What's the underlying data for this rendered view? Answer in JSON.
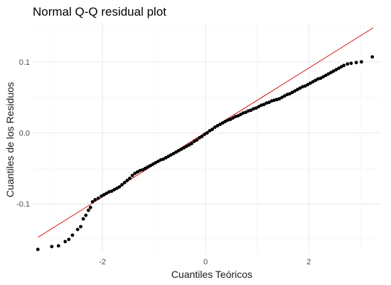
{
  "chart_data": {
    "type": "scatter",
    "title": "Normal Q-Q residual plot",
    "xlabel": "Cuantiles Teóricos",
    "ylabel": "Cuantiles de los Residuos",
    "xlim": [
      -3.35,
      3.4
    ],
    "ylim": [
      -0.17,
      0.155
    ],
    "x_ticks": [
      -2,
      0,
      2
    ],
    "x_tick_labels": [
      "-2",
      "0",
      "2"
    ],
    "y_ticks": [
      -0.1,
      0.0,
      0.1
    ],
    "y_tick_labels": [
      "-0.1",
      "0.0",
      "0.1"
    ],
    "grid": true,
    "reference_line": {
      "color": "#cc0000",
      "from": [
        -3.25,
        -0.147
      ],
      "to": [
        3.25,
        0.148
      ]
    },
    "point_color": "#000000",
    "points": [
      [
        -3.25,
        -0.164
      ],
      [
        -2.98,
        -0.16
      ],
      [
        -2.85,
        -0.159
      ],
      [
        -2.72,
        -0.153
      ],
      [
        -2.65,
        -0.15
      ],
      [
        -2.58,
        -0.144
      ],
      [
        -2.48,
        -0.136
      ],
      [
        -2.42,
        -0.132
      ],
      [
        -2.37,
        -0.121
      ],
      [
        -2.32,
        -0.116
      ],
      [
        -2.27,
        -0.109
      ],
      [
        -2.23,
        -0.105
      ],
      [
        -2.19,
        -0.097
      ],
      [
        -2.14,
        -0.094
      ],
      [
        -2.08,
        -0.092
      ],
      [
        -2.02,
        -0.089
      ],
      [
        -1.97,
        -0.087
      ],
      [
        -1.92,
        -0.085
      ],
      [
        -1.87,
        -0.083
      ],
      [
        -1.82,
        -0.082
      ],
      [
        -1.77,
        -0.08
      ],
      [
        -1.72,
        -0.078
      ],
      [
        -1.67,
        -0.076
      ],
      [
        -1.62,
        -0.073
      ],
      [
        -1.57,
        -0.07
      ],
      [
        -1.52,
        -0.067
      ],
      [
        -1.47,
        -0.064
      ],
      [
        -1.42,
        -0.06
      ],
      [
        -1.37,
        -0.057
      ],
      [
        -1.32,
        -0.055
      ],
      [
        -1.27,
        -0.053
      ],
      [
        -1.22,
        -0.052
      ],
      [
        -1.17,
        -0.05
      ],
      [
        -1.12,
        -0.048
      ],
      [
        -1.07,
        -0.046
      ],
      [
        -1.02,
        -0.044
      ],
      [
        -0.97,
        -0.042
      ],
      [
        -0.92,
        -0.04
      ],
      [
        -0.87,
        -0.038
      ],
      [
        -0.82,
        -0.037
      ],
      [
        -0.77,
        -0.035
      ],
      [
        -0.72,
        -0.033
      ],
      [
        -0.67,
        -0.031
      ],
      [
        -0.62,
        -0.029
      ],
      [
        -0.57,
        -0.027
      ],
      [
        -0.52,
        -0.025
      ],
      [
        -0.47,
        -0.023
      ],
      [
        -0.42,
        -0.021
      ],
      [
        -0.37,
        -0.019
      ],
      [
        -0.32,
        -0.017
      ],
      [
        -0.27,
        -0.015
      ],
      [
        -0.22,
        -0.012
      ],
      [
        -0.17,
        -0.01
      ],
      [
        -0.12,
        -0.007
      ],
      [
        -0.07,
        -0.005
      ],
      [
        -0.02,
        -0.002
      ],
      [
        0.03,
        0.0
      ],
      [
        0.08,
        0.003
      ],
      [
        0.13,
        0.005
      ],
      [
        0.18,
        0.008
      ],
      [
        0.23,
        0.01
      ],
      [
        0.28,
        0.012
      ],
      [
        0.33,
        0.014
      ],
      [
        0.38,
        0.016
      ],
      [
        0.43,
        0.018
      ],
      [
        0.48,
        0.019
      ],
      [
        0.53,
        0.021
      ],
      [
        0.58,
        0.023
      ],
      [
        0.63,
        0.024
      ],
      [
        0.68,
        0.026
      ],
      [
        0.73,
        0.028
      ],
      [
        0.78,
        0.029
      ],
      [
        0.83,
        0.031
      ],
      [
        0.88,
        0.032
      ],
      [
        0.93,
        0.034
      ],
      [
        0.98,
        0.035
      ],
      [
        1.03,
        0.037
      ],
      [
        1.08,
        0.039
      ],
      [
        1.13,
        0.04
      ],
      [
        1.18,
        0.042
      ],
      [
        1.23,
        0.043
      ],
      [
        1.28,
        0.045
      ],
      [
        1.33,
        0.046
      ],
      [
        1.38,
        0.047
      ],
      [
        1.43,
        0.048
      ],
      [
        1.48,
        0.05
      ],
      [
        1.53,
        0.052
      ],
      [
        1.58,
        0.054
      ],
      [
        1.63,
        0.055
      ],
      [
        1.68,
        0.057
      ],
      [
        1.73,
        0.059
      ],
      [
        1.78,
        0.061
      ],
      [
        1.83,
        0.063
      ],
      [
        1.88,
        0.065
      ],
      [
        1.93,
        0.066
      ],
      [
        1.98,
        0.068
      ],
      [
        2.03,
        0.07
      ],
      [
        2.08,
        0.072
      ],
      [
        2.13,
        0.074
      ],
      [
        2.18,
        0.076
      ],
      [
        2.23,
        0.077
      ],
      [
        2.28,
        0.079
      ],
      [
        2.33,
        0.081
      ],
      [
        2.38,
        0.083
      ],
      [
        2.43,
        0.085
      ],
      [
        2.48,
        0.087
      ],
      [
        2.53,
        0.089
      ],
      [
        2.58,
        0.091
      ],
      [
        2.63,
        0.093
      ],
      [
        2.68,
        0.095
      ],
      [
        2.75,
        0.097
      ],
      [
        2.82,
        0.098
      ],
      [
        2.92,
        0.099
      ],
      [
        3.02,
        0.1
      ],
      [
        3.23,
        0.107
      ]
    ]
  }
}
